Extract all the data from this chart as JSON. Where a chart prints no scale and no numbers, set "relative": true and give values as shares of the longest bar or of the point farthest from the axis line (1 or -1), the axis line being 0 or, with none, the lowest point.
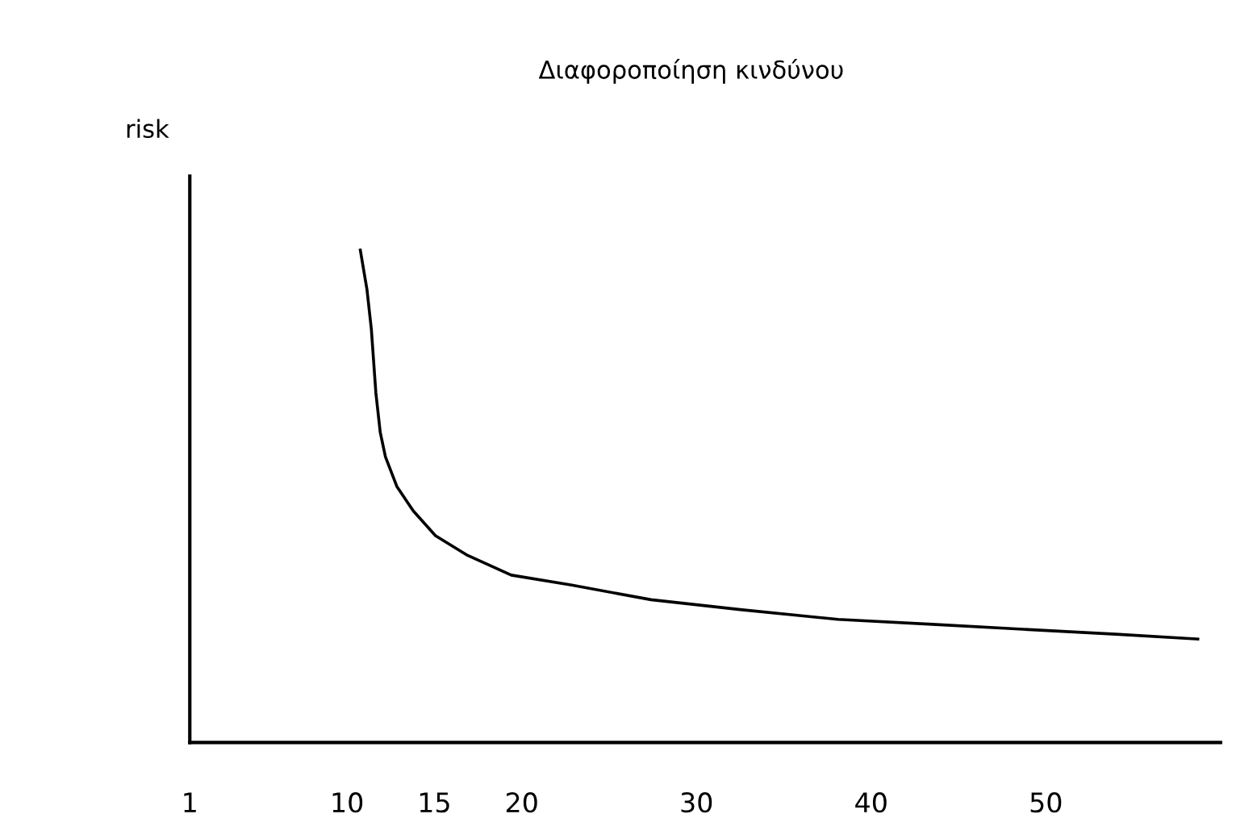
{
  "chart_data": {
    "type": "line",
    "title": "Διαφοροποίηση κινδύνου",
    "ylabel": "risk",
    "relative": true,
    "x": [
      10.76,
      11.14,
      11.39,
      11.65,
      11.9,
      12.2,
      12.85,
      13.8,
      15.06,
      16.9,
      19.4,
      22.8,
      27.4,
      32.5,
      38.1,
      43.5,
      48.7,
      54,
      58.7
    ],
    "series": [
      {
        "color": "#000000",
        "values": [
          1,
          0.92,
          0.84,
          0.71,
          0.63,
          0.58,
          0.52,
          0.47,
          0.42,
          0.38,
          0.34,
          0.32,
          0.29,
          0.27,
          0.25,
          0.24,
          0.23,
          0.22,
          0.21
        ]
      }
    ],
    "xlim": [
      1,
      60
    ],
    "xticks": [
      1,
      10,
      15,
      20,
      30,
      40,
      50
    ],
    "grid": false,
    "legend": false,
    "marker": "none",
    "line_style": "solid"
  }
}
